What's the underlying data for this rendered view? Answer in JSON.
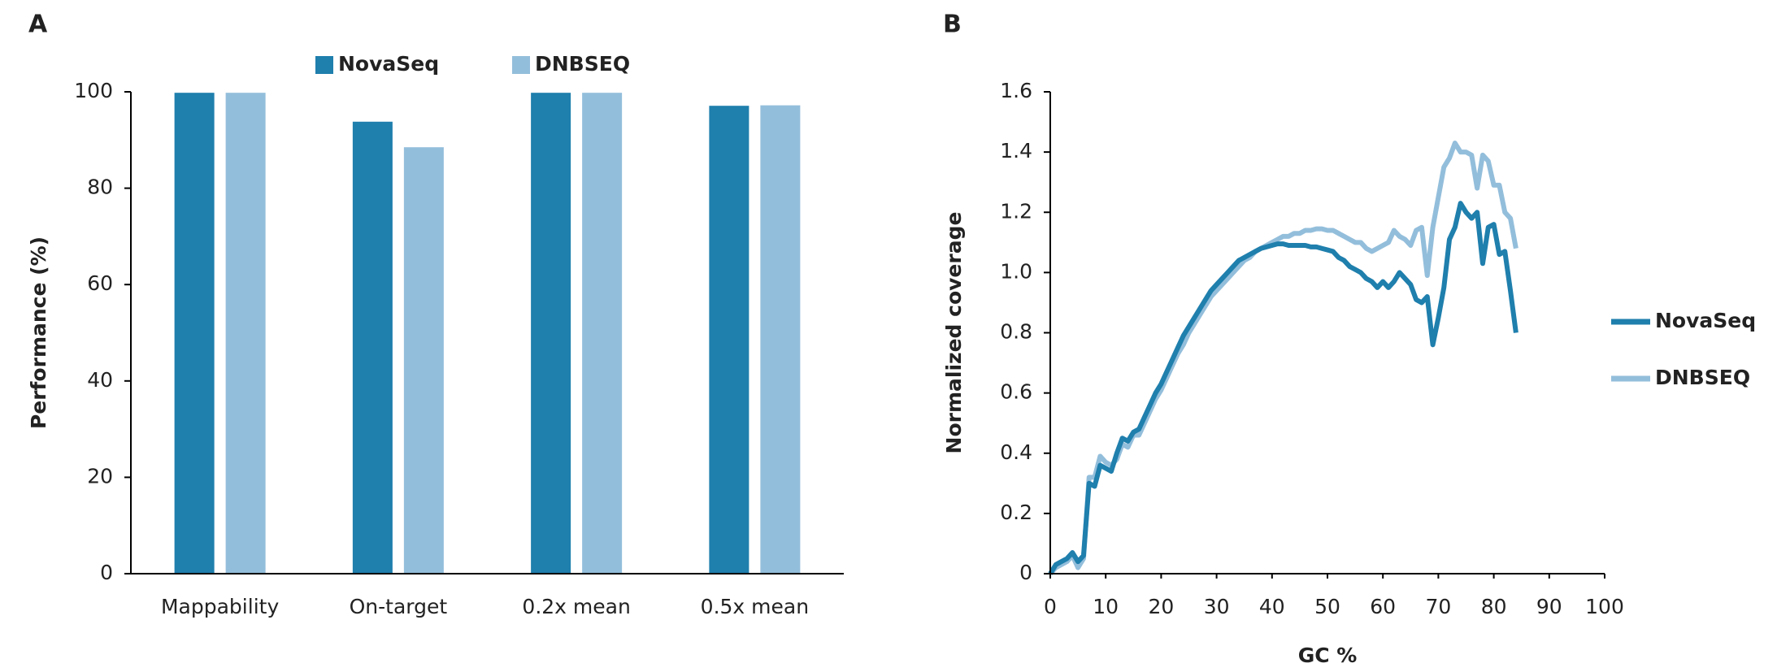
{
  "chart_data": [
    {
      "type": "bar",
      "panel": "A",
      "ylabel": "Performance (%)",
      "categories": [
        "Mappability",
        "On-target",
        "0.2x mean",
        "0.5x mean"
      ],
      "series": [
        {
          "name": "NovaSeq",
          "color": "#1f7fad",
          "values": [
            99.8,
            93.8,
            99.8,
            97.1
          ]
        },
        {
          "name": "DNBSEQ",
          "color": "#93bedb",
          "values": [
            99.8,
            88.5,
            99.8,
            97.2
          ]
        }
      ],
      "ylim": [
        0,
        100
      ],
      "yticks": [
        0,
        20,
        40,
        60,
        80,
        100
      ],
      "legend": "top",
      "grid": false
    },
    {
      "type": "line",
      "panel": "B",
      "xlabel": "GC %",
      "ylabel": "Normalized coverage",
      "x": [
        0,
        1,
        2,
        3,
        4,
        5,
        6,
        7,
        8,
        9,
        10,
        11,
        12,
        13,
        14,
        15,
        16,
        17,
        18,
        19,
        20,
        21,
        22,
        23,
        24,
        25,
        26,
        27,
        28,
        29,
        30,
        31,
        32,
        33,
        34,
        35,
        36,
        37,
        38,
        39,
        40,
        41,
        42,
        43,
        44,
        45,
        46,
        47,
        48,
        49,
        50,
        51,
        52,
        53,
        54,
        55,
        56,
        57,
        58,
        59,
        60,
        61,
        62,
        63,
        64,
        65,
        66,
        67,
        68,
        69,
        70,
        71,
        72,
        73,
        74,
        75,
        76,
        77,
        78,
        79,
        80,
        81,
        82,
        83,
        84
      ],
      "series": [
        {
          "name": "NovaSeq",
          "color": "#1f7fad",
          "values": [
            0,
            0.03,
            0.04,
            0.05,
            0.07,
            0.04,
            0.06,
            0.3,
            0.29,
            0.36,
            0.35,
            0.34,
            0.4,
            0.45,
            0.44,
            0.47,
            0.48,
            0.52,
            0.56,
            0.6,
            0.63,
            0.67,
            0.71,
            0.75,
            0.79,
            0.82,
            0.85,
            0.88,
            0.91,
            0.94,
            0.96,
            0.98,
            1.0,
            1.02,
            1.04,
            1.05,
            1.06,
            1.07,
            1.08,
            1.085,
            1.09,
            1.095,
            1.095,
            1.09,
            1.09,
            1.09,
            1.09,
            1.085,
            1.085,
            1.08,
            1.075,
            1.07,
            1.05,
            1.04,
            1.02,
            1.01,
            1.0,
            0.98,
            0.97,
            0.95,
            0.97,
            0.95,
            0.97,
            1.0,
            0.98,
            0.96,
            0.91,
            0.9,
            0.92,
            0.76,
            0.85,
            0.95,
            1.11,
            1.15,
            1.23,
            1.2,
            1.18,
            1.2,
            1.03,
            1.15,
            1.16,
            1.06,
            1.07,
            0.94,
            0.8
          ]
        },
        {
          "name": "DNBSEQ",
          "color": "#93bedb",
          "values": [
            0,
            0.02,
            0.03,
            0.04,
            0.06,
            0.02,
            0.05,
            0.32,
            0.32,
            0.39,
            0.37,
            0.36,
            0.38,
            0.43,
            0.42,
            0.46,
            0.46,
            0.5,
            0.54,
            0.58,
            0.61,
            0.65,
            0.69,
            0.73,
            0.76,
            0.8,
            0.83,
            0.86,
            0.89,
            0.92,
            0.94,
            0.96,
            0.98,
            1.0,
            1.02,
            1.04,
            1.05,
            1.07,
            1.08,
            1.09,
            1.1,
            1.11,
            1.12,
            1.12,
            1.13,
            1.13,
            1.14,
            1.14,
            1.145,
            1.145,
            1.14,
            1.14,
            1.13,
            1.12,
            1.11,
            1.1,
            1.1,
            1.08,
            1.07,
            1.08,
            1.09,
            1.1,
            1.14,
            1.12,
            1.11,
            1.09,
            1.14,
            1.15,
            0.99,
            1.15,
            1.25,
            1.35,
            1.38,
            1.43,
            1.4,
            1.4,
            1.39,
            1.28,
            1.39,
            1.37,
            1.29,
            1.29,
            1.2,
            1.18,
            1.08
          ]
        }
      ],
      "xlim": [
        0,
        100
      ],
      "xticks": [
        0,
        10,
        20,
        30,
        40,
        50,
        60,
        70,
        80,
        90,
        100
      ],
      "ylim": [
        0,
        1.6
      ],
      "yticks": [
        0,
        0.2,
        0.4,
        0.6,
        0.8,
        {
          "value": 1,
          "label": "1.0"
        },
        1.2,
        1.4,
        1.6
      ],
      "legend": "right",
      "grid": false
    }
  ]
}
